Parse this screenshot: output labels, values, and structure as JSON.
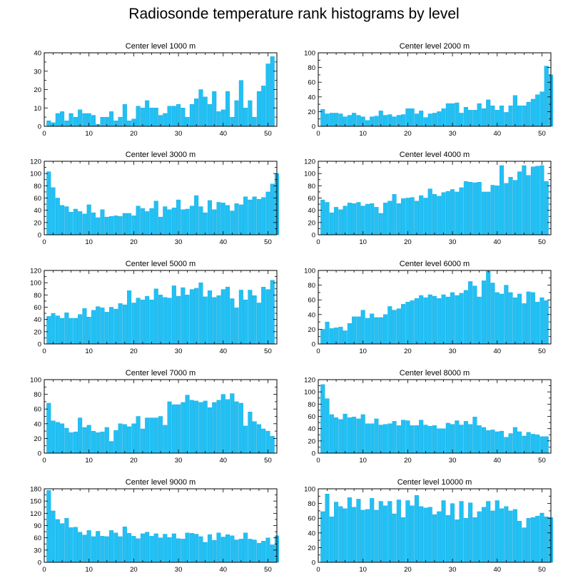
{
  "figure_title": "Radiosonde temperature rank histograms by level",
  "colors": {
    "bar": "#22c0f4",
    "bar_edge": "#0aa6dc",
    "axis": "#000000"
  },
  "chart_data": [
    {
      "type": "bar",
      "title": "Center level 1000 m",
      "xlabel": "",
      "ylabel": "",
      "xlim": [
        0,
        52
      ],
      "ylim": [
        0,
        40
      ],
      "xticks": [
        0,
        10,
        20,
        30,
        40,
        50
      ],
      "yticks": [
        0,
        10,
        20,
        30,
        40
      ],
      "values": [
        3,
        2,
        7,
        8,
        3,
        7,
        5,
        9,
        7,
        7,
        6,
        1,
        5,
        5,
        8,
        3,
        5,
        12,
        3,
        4,
        11,
        10,
        14,
        10,
        10,
        6,
        7,
        11,
        11,
        12,
        10,
        5,
        12,
        15,
        20,
        16,
        12,
        19,
        8,
        9,
        19,
        5,
        14,
        25,
        10,
        14,
        5,
        19,
        22,
        34,
        38
      ]
    },
    {
      "type": "bar",
      "title": "Center level 2000 m",
      "xlabel": "",
      "ylabel": "",
      "xlim": [
        0,
        52
      ],
      "ylim": [
        0,
        100
      ],
      "xticks": [
        0,
        10,
        20,
        30,
        40,
        50
      ],
      "yticks": [
        0,
        20,
        40,
        60,
        80,
        100
      ],
      "values": [
        23,
        17,
        18,
        18,
        17,
        13,
        15,
        18,
        15,
        13,
        8,
        13,
        14,
        21,
        15,
        16,
        13,
        15,
        16,
        24,
        24,
        17,
        21,
        12,
        17,
        18,
        20,
        24,
        31,
        31,
        32,
        18,
        26,
        22,
        22,
        31,
        24,
        36,
        28,
        22,
        28,
        19,
        28,
        42,
        28,
        28,
        33,
        37,
        43,
        47,
        82,
        70
      ]
    },
    {
      "type": "bar",
      "title": "Center level 3000 m",
      "xlabel": "",
      "ylabel": "",
      "xlim": [
        0,
        52
      ],
      "ylim": [
        0,
        120
      ],
      "xticks": [
        0,
        10,
        20,
        30,
        40,
        50
      ],
      "yticks": [
        0,
        20,
        40,
        60,
        80,
        100,
        120
      ],
      "values": [
        103,
        77,
        60,
        48,
        46,
        37,
        42,
        38,
        34,
        49,
        36,
        28,
        41,
        29,
        30,
        31,
        30,
        35,
        35,
        31,
        47,
        43,
        38,
        43,
        55,
        29,
        46,
        41,
        44,
        57,
        41,
        42,
        47,
        64,
        46,
        36,
        56,
        41,
        53,
        52,
        48,
        39,
        51,
        49,
        62,
        57,
        62,
        58,
        61,
        70,
        83,
        100
      ]
    },
    {
      "type": "bar",
      "title": "Center level 4000 m",
      "xlabel": "",
      "ylabel": "",
      "xlim": [
        0,
        52
      ],
      "ylim": [
        0,
        120
      ],
      "xticks": [
        0,
        10,
        20,
        30,
        40,
        50
      ],
      "yticks": [
        0,
        20,
        40,
        60,
        80,
        100,
        120
      ],
      "values": [
        57,
        53,
        36,
        45,
        41,
        47,
        52,
        51,
        53,
        47,
        50,
        51,
        45,
        35,
        52,
        55,
        66,
        51,
        59,
        60,
        61,
        55,
        64,
        60,
        75,
        66,
        63,
        69,
        71,
        74,
        70,
        77,
        87,
        86,
        85,
        86,
        70,
        70,
        81,
        80,
        113,
        84,
        94,
        89,
        103,
        113,
        97,
        111,
        112,
        113,
        87
      ]
    },
    {
      "type": "bar",
      "title": "Center level 5000 m",
      "xlabel": "",
      "ylabel": "",
      "xlim": [
        0,
        52
      ],
      "ylim": [
        0,
        120
      ],
      "xticks": [
        0,
        10,
        20,
        30,
        40,
        50
      ],
      "yticks": [
        0,
        20,
        40,
        60,
        80,
        100,
        120
      ],
      "values": [
        45,
        50,
        46,
        42,
        51,
        42,
        42,
        48,
        58,
        44,
        55,
        61,
        59,
        52,
        60,
        57,
        66,
        64,
        87,
        67,
        75,
        72,
        78,
        72,
        90,
        80,
        76,
        75,
        95,
        78,
        92,
        80,
        89,
        91,
        100,
        77,
        87,
        76,
        79,
        89,
        93,
        74,
        59,
        88,
        72,
        88,
        79,
        67,
        93,
        89,
        104
      ]
    },
    {
      "type": "bar",
      "title": "Center level 6000 m",
      "xlabel": "",
      "ylabel": "",
      "xlim": [
        0,
        52
      ],
      "ylim": [
        0,
        100
      ],
      "xticks": [
        0,
        10,
        20,
        30,
        40,
        50
      ],
      "yticks": [
        0,
        20,
        40,
        60,
        80,
        100
      ],
      "values": [
        20,
        30,
        21,
        22,
        23,
        18,
        28,
        37,
        37,
        46,
        35,
        41,
        36,
        36,
        40,
        51,
        46,
        48,
        54,
        57,
        59,
        62,
        66,
        63,
        67,
        65,
        62,
        67,
        64,
        70,
        66,
        69,
        73,
        85,
        79,
        64,
        86,
        99,
        83,
        70,
        68,
        80,
        70,
        63,
        68,
        55,
        71,
        70,
        57,
        63,
        59
      ]
    },
    {
      "type": "bar",
      "title": "Center level 7000 m",
      "xlabel": "",
      "ylabel": "",
      "xlim": [
        0,
        52
      ],
      "ylim": [
        0,
        100
      ],
      "xticks": [
        0,
        10,
        20,
        30,
        40,
        50
      ],
      "yticks": [
        0,
        20,
        40,
        60,
        80,
        100
      ],
      "values": [
        68,
        44,
        42,
        40,
        34,
        28,
        29,
        48,
        35,
        38,
        30,
        28,
        29,
        35,
        16,
        31,
        40,
        39,
        36,
        40,
        50,
        33,
        48,
        48,
        48,
        50,
        38,
        70,
        66,
        66,
        69,
        79,
        72,
        71,
        69,
        71,
        62,
        69,
        72,
        80,
        73,
        81,
        70,
        68,
        37,
        56,
        43,
        39,
        33,
        30,
        23
      ]
    },
    {
      "type": "bar",
      "title": "Center level 8000 m",
      "xlabel": "",
      "ylabel": "",
      "xlim": [
        0,
        52
      ],
      "ylim": [
        0,
        120
      ],
      "xticks": [
        0,
        10,
        20,
        30,
        40,
        50
      ],
      "yticks": [
        0,
        20,
        40,
        60,
        80,
        100,
        120
      ],
      "values": [
        112,
        89,
        63,
        58,
        55,
        64,
        58,
        59,
        56,
        63,
        48,
        48,
        56,
        46,
        47,
        48,
        52,
        45,
        54,
        53,
        45,
        45,
        54,
        46,
        44,
        45,
        40,
        40,
        49,
        47,
        53,
        46,
        52,
        47,
        59,
        45,
        42,
        37,
        38,
        35,
        36,
        26,
        32,
        42,
        35,
        28,
        34,
        31,
        30,
        27,
        27
      ]
    },
    {
      "type": "bar",
      "title": "Center level 9000 m",
      "xlabel": "",
      "ylabel": "",
      "xlim": [
        0,
        52
      ],
      "ylim": [
        0,
        180
      ],
      "xticks": [
        0,
        10,
        20,
        30,
        40,
        50
      ],
      "yticks": [
        0,
        30,
        60,
        90,
        120,
        150,
        180
      ],
      "values": [
        176,
        126,
        105,
        95,
        108,
        85,
        86,
        74,
        67,
        78,
        63,
        76,
        64,
        63,
        78,
        72,
        63,
        87,
        71,
        64,
        58,
        70,
        74,
        64,
        70,
        60,
        69,
        61,
        70,
        58,
        57,
        72,
        71,
        69,
        63,
        49,
        68,
        54,
        72,
        62,
        68,
        65,
        55,
        57,
        72,
        57,
        55,
        47,
        52,
        60,
        43,
        65
      ]
    },
    {
      "type": "bar",
      "title": "Center level 10000 m",
      "xlabel": "",
      "ylabel": "",
      "xlim": [
        0,
        52
      ],
      "ylim": [
        0,
        100
      ],
      "xticks": [
        0,
        10,
        20,
        30,
        40,
        50
      ],
      "yticks": [
        0,
        20,
        40,
        60,
        80,
        100
      ],
      "values": [
        69,
        93,
        62,
        82,
        76,
        73,
        88,
        75,
        86,
        71,
        72,
        87,
        71,
        83,
        77,
        83,
        66,
        85,
        61,
        84,
        77,
        91,
        76,
        74,
        75,
        65,
        69,
        84,
        64,
        80,
        58,
        83,
        60,
        81,
        61,
        69,
        75,
        83,
        70,
        84,
        73,
        76,
        70,
        72,
        56,
        47,
        60,
        61,
        63,
        67,
        62,
        61
      ]
    }
  ]
}
